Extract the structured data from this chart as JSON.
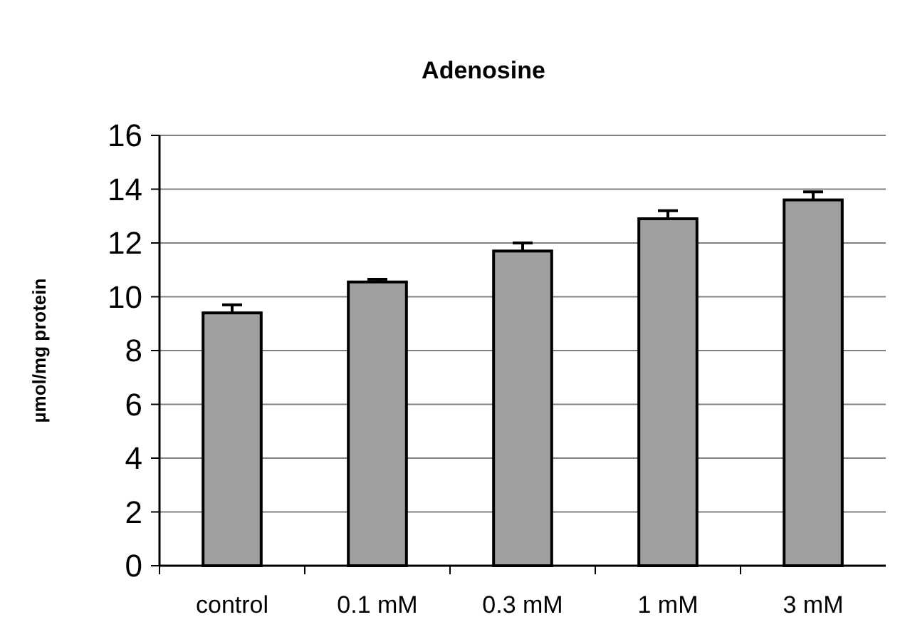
{
  "chart_data": {
    "type": "bar",
    "title": "Adenosine",
    "ylabel": "µmol/mg protein",
    "categories": [
      "control",
      "0.1 mM",
      "0.3 mM",
      "1 mM",
      "3 mM"
    ],
    "values": [
      9.4,
      10.55,
      11.7,
      12.9,
      13.6
    ],
    "errors": [
      [
        9.4,
        9.7
      ],
      [
        10.55,
        10.65
      ],
      [
        11.7,
        12.0
      ],
      [
        12.9,
        13.2
      ],
      [
        13.6,
        13.9
      ]
    ],
    "color": "#a0a0a0",
    "ylim": [
      0,
      16
    ],
    "yticks": [
      0,
      2,
      4,
      6,
      8,
      10,
      12,
      14,
      16
    ],
    "grid": "y"
  }
}
